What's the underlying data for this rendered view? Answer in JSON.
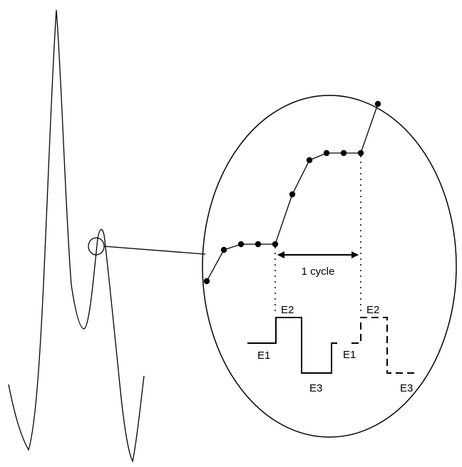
{
  "diagram": {
    "cycle_label": "1 cycle",
    "waveform_labels": {
      "first_cycle": {
        "e1": "E1",
        "e2": "E2",
        "e3": "E3"
      },
      "second_cycle": {
        "e1": "E1",
        "e2": "E2",
        "e3": "E3"
      }
    },
    "colors": {
      "ink": "#000000",
      "background": "#ffffff"
    }
  }
}
